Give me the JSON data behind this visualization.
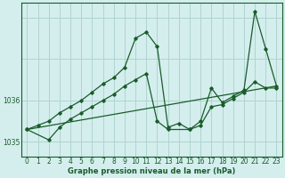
{
  "xlabel": "Graphe pression niveau de la mer (hPa)",
  "bg_color": "#d4eeed",
  "grid_color": "#b0d4d0",
  "line_color": "#1a5c2a",
  "xlim": [
    -0.5,
    23.5
  ],
  "ylim": [
    1034.65,
    1038.35
  ],
  "yticks": [
    1035,
    1036,
    1037,
    1038
  ],
  "ytick_labels": [
    "1035",
    "1036",
    "",
    ""
  ],
  "xticks": [
    0,
    1,
    2,
    3,
    4,
    5,
    6,
    7,
    8,
    9,
    10,
    11,
    12,
    13,
    14,
    15,
    16,
    17,
    18,
    19,
    20,
    21,
    22,
    23
  ],
  "series1_x": [
    0,
    1,
    2,
    3,
    4,
    5,
    6,
    7,
    8,
    9,
    10,
    11,
    12,
    13,
    14,
    15,
    16,
    17,
    18,
    19,
    20,
    21,
    22,
    23
  ],
  "series1_y": [
    1035.3,
    1035.4,
    1035.5,
    1035.7,
    1035.85,
    1036.0,
    1036.2,
    1036.4,
    1036.55,
    1036.8,
    1037.5,
    1037.65,
    1037.3,
    1035.35,
    1035.45,
    1035.3,
    1035.5,
    1036.3,
    1035.95,
    1036.1,
    1036.25,
    1038.15,
    1037.25,
    1036.35
  ],
  "series2_x": [
    0,
    2,
    3,
    4,
    5,
    6,
    7,
    8,
    9,
    10,
    11,
    12,
    13,
    15,
    16,
    17,
    18,
    19,
    20,
    21,
    22,
    23
  ],
  "series2_y": [
    1035.3,
    1035.05,
    1035.35,
    1035.55,
    1035.7,
    1035.85,
    1036.0,
    1036.15,
    1036.35,
    1036.5,
    1036.65,
    1035.5,
    1035.3,
    1035.3,
    1035.4,
    1035.85,
    1035.9,
    1036.05,
    1036.2,
    1036.45,
    1036.3,
    1036.3
  ],
  "series3_x": [
    0,
    23
  ],
  "series3_y": [
    1035.3,
    1036.35
  ],
  "xlabel_fontsize": 6.0,
  "tick_fontsize": 5.5
}
